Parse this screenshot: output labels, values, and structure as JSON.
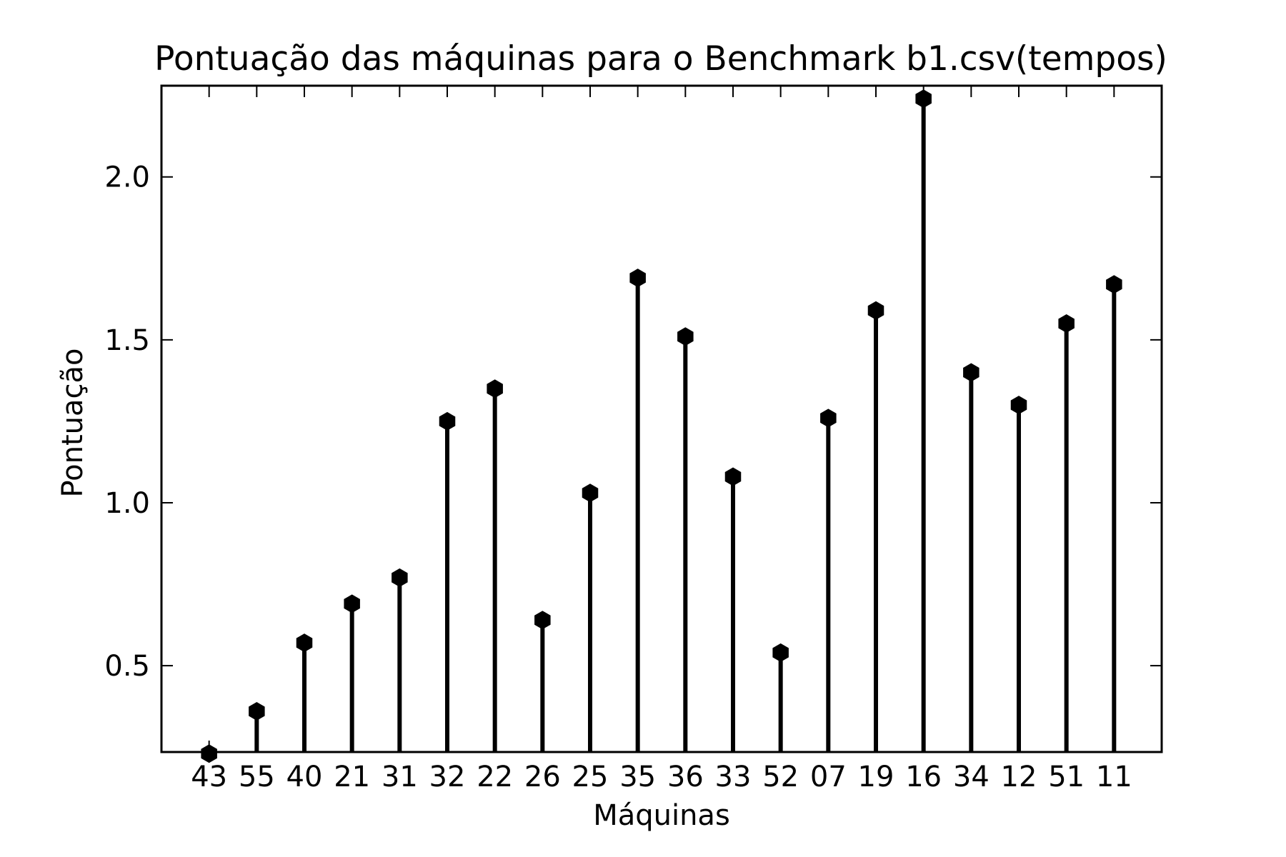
{
  "chart_data": {
    "type": "stem",
    "title": "Pontuação das máquinas para o Benchmark b1.csv(tempos)",
    "xlabel": "Máquinas",
    "ylabel": "Pontuação",
    "categories": [
      "43",
      "55",
      "40",
      "21",
      "31",
      "32",
      "22",
      "26",
      "25",
      "35",
      "36",
      "33",
      "52",
      "07",
      "19",
      "16",
      "34",
      "12",
      "51",
      "11"
    ],
    "values": [
      0.23,
      0.36,
      0.57,
      0.69,
      0.77,
      1.25,
      1.35,
      0.64,
      1.03,
      1.69,
      1.51,
      1.08,
      0.54,
      1.26,
      1.59,
      2.24,
      1.4,
      1.3,
      1.55,
      1.67
    ],
    "ylim": [
      0.235,
      2.28
    ],
    "yticks": [
      0.5,
      1.0,
      1.5,
      2.0
    ],
    "ytick_labels": [
      "0.5",
      "1.0",
      "1.5",
      "2.0"
    ],
    "marker": "hexagon",
    "color": "#000000",
    "grid": false
  }
}
